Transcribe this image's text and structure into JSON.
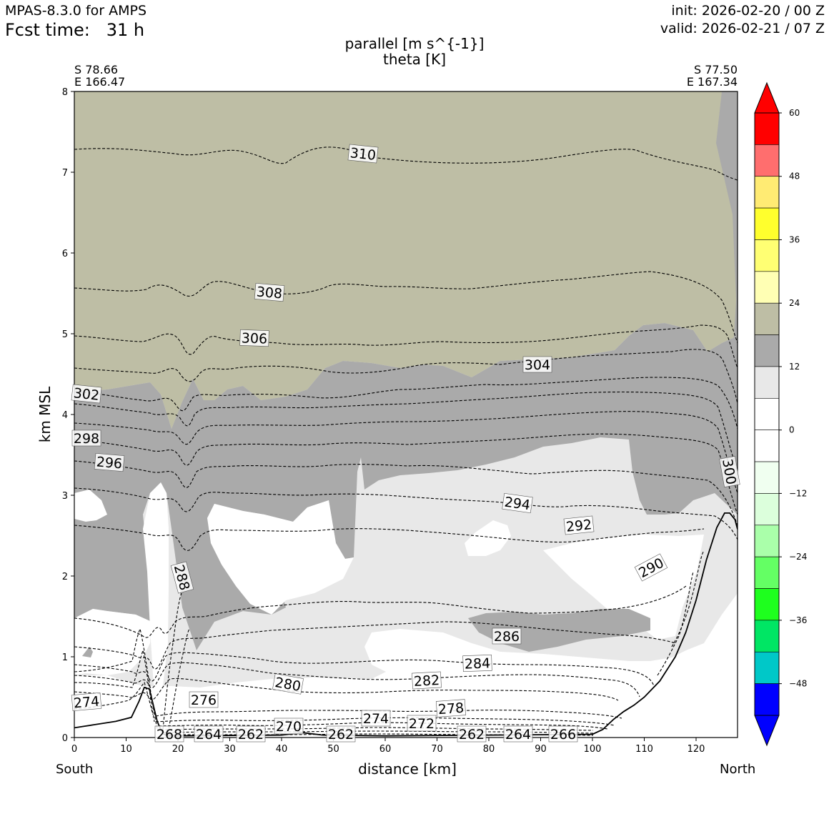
{
  "header": {
    "model": "MPAS-8.3.0 for AMPS",
    "fcst_label": "Fcst time:",
    "fcst_value": "31 h",
    "init": "init: 2026-02-20 / 00 Z",
    "valid": "valid: 2026-02-21 / 07 Z"
  },
  "chart_data": {
    "type": "cross-section (filled contour + contour lines)",
    "title": "parallel [m s^{-1}]",
    "subtitle": "theta [K]",
    "xlabel": "distance [km]",
    "ylabel": "km MSL",
    "xlim": [
      0,
      128
    ],
    "ylim": [
      0,
      8
    ],
    "xticks": [
      0,
      10,
      20,
      30,
      40,
      50,
      60,
      70,
      80,
      90,
      100,
      110,
      120
    ],
    "yticks": [
      0,
      1,
      2,
      3,
      4,
      5,
      6,
      7,
      8
    ],
    "endpoints": {
      "left": {
        "lat": "S 78.66",
        "lon": "E 166.47",
        "side": "South"
      },
      "right": {
        "lat": "S 77.50",
        "lon": "E 167.34",
        "side": "North"
      }
    },
    "colorbar": {
      "ticks": [
        "60",
        "48",
        "36",
        "24",
        "12",
        "0",
        "−12",
        "−24",
        "−36",
        "−48"
      ],
      "levels_top_to_bottom": [
        {
          "range": [
            54,
            60
          ],
          "color": "#ff0000"
        },
        {
          "range": [
            48,
            54
          ],
          "color": "#ff6e6e"
        },
        {
          "range": [
            42,
            48
          ],
          "color": "#ffeb73"
        },
        {
          "range": [
            36,
            42
          ],
          "color": "#ffff2d"
        },
        {
          "range": [
            30,
            36
          ],
          "color": "#ffff73"
        },
        {
          "range": [
            24,
            30
          ],
          "color": "#ffffb4"
        },
        {
          "range": [
            18,
            24
          ],
          "color": "#bebea5"
        },
        {
          "range": [
            12,
            18
          ],
          "color": "#aaaaaa"
        },
        {
          "range": [
            6,
            12
          ],
          "color": "#e8e8e8"
        },
        {
          "range": [
            0,
            6
          ],
          "color": "#ffffff"
        },
        {
          "range": [
            -6,
            0
          ],
          "color": "#ffffff"
        },
        {
          "range": [
            -12,
            -6
          ],
          "color": "#f0fff0"
        },
        {
          "range": [
            -18,
            -12
          ],
          "color": "#dcffdc"
        },
        {
          "range": [
            -24,
            -18
          ],
          "color": "#aaffaa"
        },
        {
          "range": [
            -30,
            -24
          ],
          "color": "#64ff64"
        },
        {
          "range": [
            -36,
            -30
          ],
          "color": "#1eff1e"
        },
        {
          "range": [
            -42,
            -36
          ],
          "color": "#00e664"
        },
        {
          "range": [
            -48,
            -42
          ],
          "color": "#00c8c8"
        },
        {
          "range": [
            -54,
            -48
          ],
          "color": "#0000ff"
        }
      ],
      "extend_max_color": "#ff0000",
      "extend_min_color": "#0000ff"
    },
    "terrain": [
      [
        0,
        0.12
      ],
      [
        4,
        0.16
      ],
      [
        8,
        0.2
      ],
      [
        11,
        0.25
      ],
      [
        12.5,
        0.45
      ],
      [
        13.5,
        0.62
      ],
      [
        14.5,
        0.6
      ],
      [
        16,
        0.2
      ],
      [
        17,
        0.05
      ],
      [
        18,
        0.02
      ],
      [
        40,
        0.03
      ],
      [
        44,
        0.06
      ],
      [
        48,
        0.03
      ],
      [
        60,
        0.02
      ],
      [
        100,
        0.04
      ],
      [
        102,
        0.1
      ],
      [
        104,
        0.22
      ],
      [
        106,
        0.32
      ],
      [
        108,
        0.4
      ],
      [
        110,
        0.5
      ],
      [
        113,
        0.7
      ],
      [
        116,
        1.0
      ],
      [
        118,
        1.3
      ],
      [
        120,
        1.7
      ],
      [
        122,
        2.2
      ],
      [
        124,
        2.6
      ],
      [
        125.5,
        2.78
      ],
      [
        126.5,
        2.78
      ],
      [
        127.5,
        2.7
      ],
      [
        128,
        2.58
      ]
    ],
    "theta_label_values": [
      "310",
      "308",
      "306",
      "304",
      "302",
      "300",
      "298",
      "296",
      "294",
      "292",
      "290",
      "288",
      "286",
      "284",
      "282",
      "280",
      "278",
      "276",
      "274",
      "274",
      "272",
      "270",
      "268",
      "266",
      "264",
      "264",
      "262",
      "262",
      "262"
    ]
  }
}
